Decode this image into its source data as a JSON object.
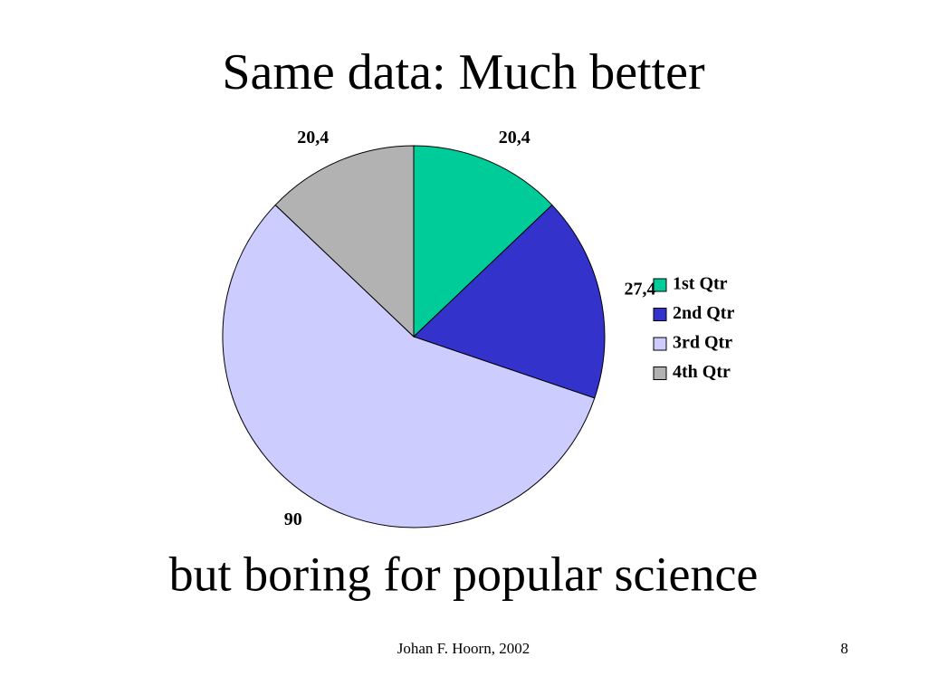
{
  "title": "Same data: Much better",
  "chart_data": {
    "type": "pie",
    "categories": [
      "1st Qtr",
      "2nd Qtr",
      "3rd Qtr",
      "4th Qtr"
    ],
    "values": [
      20.4,
      27.4,
      90,
      20.4
    ],
    "value_labels": [
      "20,4",
      "27,4",
      "90",
      "20,4"
    ],
    "colors": [
      "#00cc99",
      "#3333cc",
      "#ccccff",
      "#b2b2b2"
    ],
    "legend": "right"
  },
  "body_text": "but boring for popular science",
  "footer": {
    "author": "Johan F. Hoorn, 2002",
    "page": "8"
  }
}
